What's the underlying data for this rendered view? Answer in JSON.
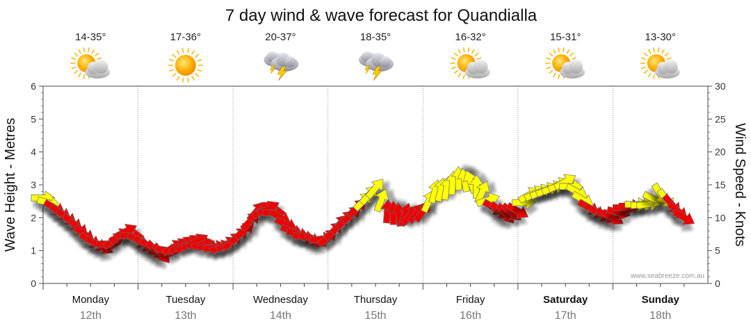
{
  "chart_data": {
    "type": "line",
    "title": "7 day wind & wave forecast for Quandialla",
    "ylabel_left": "Wave Height - Metres",
    "ylabel_right": "Wind Speed - Knots",
    "ylim_left": [
      0,
      6
    ],
    "ylim_right": [
      0,
      30
    ],
    "yticks_left": [
      "0",
      "1",
      "2",
      "3",
      "4",
      "5",
      "6"
    ],
    "yticks_right": [
      "0",
      "5",
      "10",
      "15",
      "20",
      "25",
      "30"
    ],
    "grid": true,
    "watermark": "www.seabreeze.com.au",
    "colors": {
      "strong": "#ee0000",
      "moderate": "#ffff00",
      "outline": "#666666"
    },
    "days": [
      {
        "name": "Monday",
        "date": "12th",
        "temp": "14-35°",
        "icon": "partly-cloudy-icon",
        "bold": false
      },
      {
        "name": "Tuesday",
        "date": "13th",
        "temp": "17-36°",
        "icon": "sunny-icon",
        "bold": false
      },
      {
        "name": "Wednesday",
        "date": "14th",
        "temp": "20-37°",
        "icon": "thunderstorm-icon",
        "bold": false
      },
      {
        "name": "Thursday",
        "date": "15th",
        "temp": "18-35°",
        "icon": "thunderstorm-icon",
        "bold": false
      },
      {
        "name": "Friday",
        "date": "16th",
        "temp": "16-32°",
        "icon": "partly-cloudy-icon",
        "bold": false
      },
      {
        "name": "Saturday",
        "date": "17th",
        "temp": "15-31°",
        "icon": "partly-cloudy-icon",
        "bold": true
      },
      {
        "name": "Sunday",
        "date": "18th",
        "temp": "13-30°",
        "icon": "partly-cloudy-icon",
        "bold": true
      }
    ],
    "series": [
      {
        "name": "Wind",
        "units": "knots",
        "points": [
          {
            "t": 0.0,
            "speed": 13.0,
            "dir": 270
          },
          {
            "t": 0.12,
            "speed": 11.5,
            "dir": 300
          },
          {
            "t": 0.25,
            "speed": 10.0,
            "dir": 305
          },
          {
            "t": 0.37,
            "speed": 8.5,
            "dir": 310
          },
          {
            "t": 0.5,
            "speed": 6.5,
            "dir": 300
          },
          {
            "t": 0.62,
            "speed": 5.5,
            "dir": 300
          },
          {
            "t": 0.75,
            "speed": 6.5,
            "dir": 240
          },
          {
            "t": 0.87,
            "speed": 8.0,
            "dir": 240
          },
          {
            "t": 1.0,
            "speed": 6.5,
            "dir": 300
          },
          {
            "t": 1.12,
            "speed": 5.5,
            "dir": 310
          },
          {
            "t": 1.25,
            "speed": 4.5,
            "dir": 320
          },
          {
            "t": 1.37,
            "speed": 5.5,
            "dir": 240
          },
          {
            "t": 1.5,
            "speed": 6.0,
            "dir": 230
          },
          {
            "t": 1.62,
            "speed": 6.5,
            "dir": 240
          },
          {
            "t": 1.75,
            "speed": 5.5,
            "dir": 270
          },
          {
            "t": 1.87,
            "speed": 5.5,
            "dir": 250
          },
          {
            "t": 2.0,
            "speed": 6.5,
            "dir": 230
          },
          {
            "t": 2.12,
            "speed": 8.0,
            "dir": 230
          },
          {
            "t": 2.25,
            "speed": 11.0,
            "dir": 220
          },
          {
            "t": 2.37,
            "speed": 11.5,
            "dir": 240
          },
          {
            "t": 2.5,
            "speed": 10.0,
            "dir": 300
          },
          {
            "t": 2.62,
            "speed": 8.0,
            "dir": 290
          },
          {
            "t": 2.75,
            "speed": 7.0,
            "dir": 280
          },
          {
            "t": 2.87,
            "speed": 6.5,
            "dir": 300
          },
          {
            "t": 3.0,
            "speed": 7.0,
            "dir": 230
          },
          {
            "t": 3.12,
            "speed": 9.0,
            "dir": 220
          },
          {
            "t": 3.25,
            "speed": 10.5,
            "dir": 230
          },
          {
            "t": 3.37,
            "speed": 12.5,
            "dir": 225
          },
          {
            "t": 3.5,
            "speed": 14.5,
            "dir": 220
          },
          {
            "t": 3.62,
            "speed": 11.0,
            "dir": 185
          },
          {
            "t": 3.75,
            "speed": 10.5,
            "dir": 175
          },
          {
            "t": 3.87,
            "speed": 10.5,
            "dir": 220
          },
          {
            "t": 4.0,
            "speed": 11.0,
            "dir": 215
          },
          {
            "t": 4.12,
            "speed": 14.0,
            "dir": 195
          },
          {
            "t": 4.25,
            "speed": 14.5,
            "dir": 190
          },
          {
            "t": 4.37,
            "speed": 16.0,
            "dir": 180
          },
          {
            "t": 4.5,
            "speed": 15.5,
            "dir": 160
          },
          {
            "t": 4.62,
            "speed": 14.0,
            "dir": 200
          },
          {
            "t": 4.75,
            "speed": 11.5,
            "dir": 300
          },
          {
            "t": 4.87,
            "speed": 10.5,
            "dir": 320
          },
          {
            "t": 5.0,
            "speed": 11.0,
            "dir": 300
          },
          {
            "t": 5.12,
            "speed": 13.5,
            "dir": 240
          },
          {
            "t": 5.25,
            "speed": 14.0,
            "dir": 245
          },
          {
            "t": 5.37,
            "speed": 14.5,
            "dir": 250
          },
          {
            "t": 5.5,
            "speed": 15.5,
            "dir": 240
          },
          {
            "t": 5.62,
            "speed": 14.0,
            "dir": 300
          },
          {
            "t": 5.75,
            "speed": 11.5,
            "dir": 300
          },
          {
            "t": 5.87,
            "speed": 10.5,
            "dir": 300
          },
          {
            "t": 6.0,
            "speed": 10.0,
            "dir": 300
          },
          {
            "t": 6.12,
            "speed": 11.5,
            "dir": 270
          },
          {
            "t": 6.25,
            "speed": 12.0,
            "dir": 270
          },
          {
            "t": 6.37,
            "speed": 12.0,
            "dir": 260
          },
          {
            "t": 6.5,
            "speed": 13.5,
            "dir": 330
          },
          {
            "t": 6.62,
            "speed": 12.0,
            "dir": 320
          },
          {
            "t": 6.75,
            "speed": 10.0,
            "dir": 300
          }
        ]
      }
    ]
  }
}
